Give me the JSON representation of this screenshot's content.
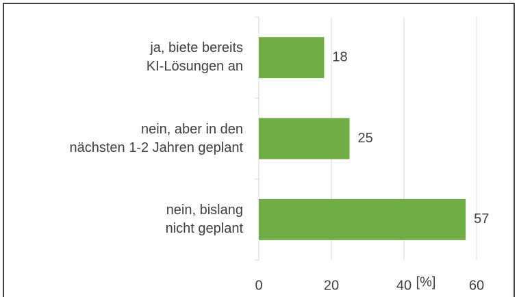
{
  "chart_data": {
    "type": "bar",
    "orientation": "horizontal",
    "categories": [
      "ja, biete bereits\nKI-Lösungen an",
      "nein, aber in den\nnächsten 1-2 Jahren geplant",
      "nein, bislang\nnicht geplant"
    ],
    "values": [
      18,
      25,
      57
    ],
    "color": "#70ad47",
    "xlabel": "[%]",
    "xlim": [
      0,
      60
    ],
    "xticks": [
      0,
      20,
      40,
      60
    ],
    "grid": true
  }
}
